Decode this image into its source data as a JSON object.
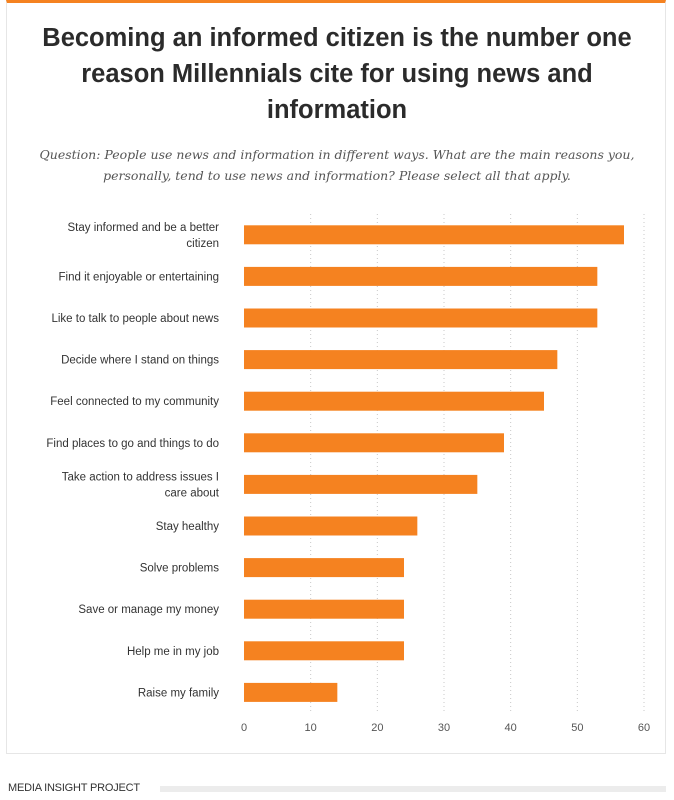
{
  "chart_data": {
    "type": "bar",
    "orientation": "horizontal",
    "title": "Becoming an informed citizen is the number one reason Millennials cite for using news and information",
    "subtitle": "Question: People use news and information in different ways. What are the main reasons you, personally, tend to use news and information? Please select all that apply.",
    "categories": [
      [
        "Stay informed and be a better",
        "citizen"
      ],
      [
        "Find it enjoyable or entertaining"
      ],
      [
        "Like to talk to people about news"
      ],
      [
        "Decide where I stand on things"
      ],
      [
        "Feel connected to my community"
      ],
      [
        "Find places to go and things to do"
      ],
      [
        "Take action to address issues I",
        "care about"
      ],
      [
        "Stay healthy"
      ],
      [
        "Solve problems"
      ],
      [
        "Save or manage my money"
      ],
      [
        "Help me in my job"
      ],
      [
        "Raise my family"
      ]
    ],
    "values": [
      57,
      53,
      53,
      47,
      45,
      39,
      35,
      26,
      24,
      24,
      24,
      14
    ],
    "xlim": [
      0,
      60
    ],
    "xticks": [
      "0",
      "10",
      "20",
      "30",
      "40",
      "50",
      "60"
    ],
    "grid": true,
    "bar_color": "#f58220"
  },
  "footer": {
    "source": "MEDIA INSIGHT PROJECT"
  }
}
